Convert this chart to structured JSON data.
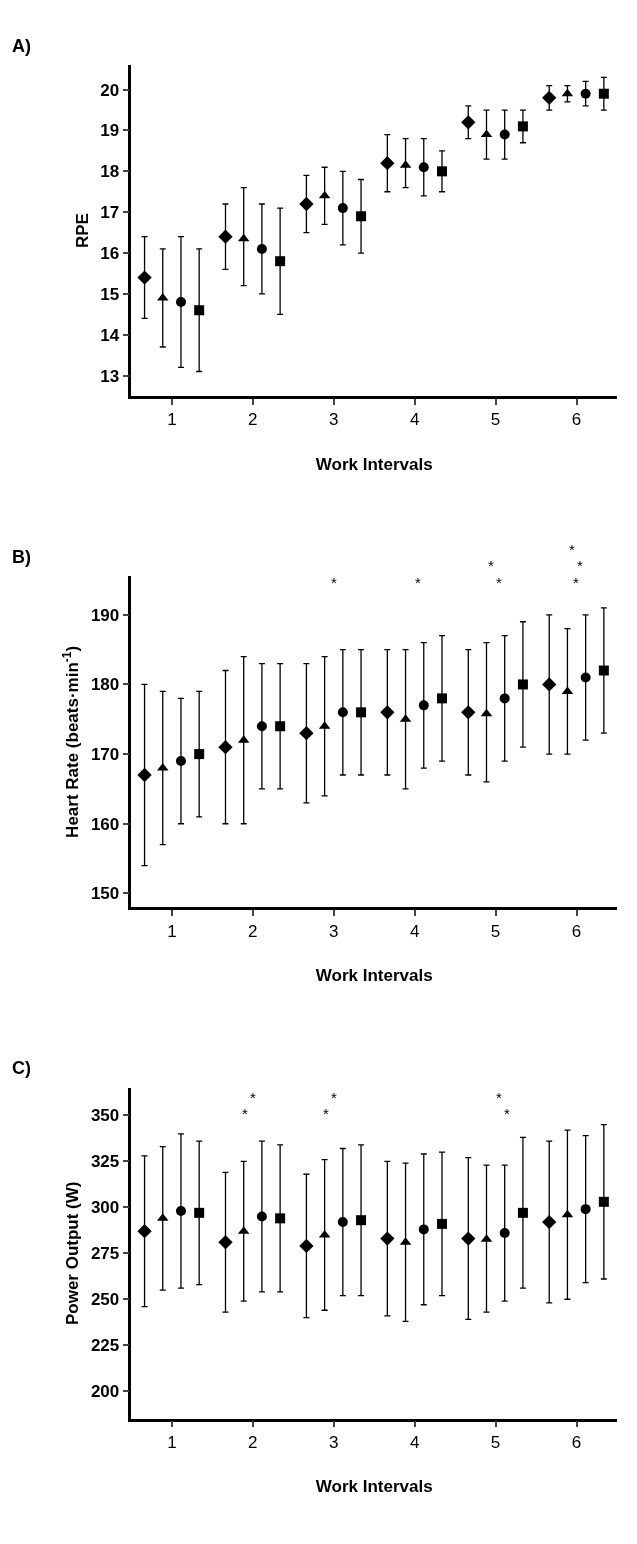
{
  "chart_data": [
    {
      "type": "scatter",
      "title": "A)",
      "xlabel": "Work Intervals",
      "ylabel": "RPE",
      "categories": [
        "1",
        "2",
        "3",
        "4",
        "5",
        "6"
      ],
      "ylim": [
        12.5,
        20.6
      ],
      "yticks": [
        13,
        14,
        15,
        16,
        17,
        18,
        19,
        20
      ],
      "series": [
        {
          "color": "#000000",
          "marker": "diamond",
          "values": [
            15.4,
            16.4,
            17.2,
            18.2,
            19.2,
            19.8
          ],
          "errors": [
            [
              14.4,
              16.4
            ],
            [
              15.6,
              17.2
            ],
            [
              16.5,
              17.9
            ],
            [
              17.5,
              18.9
            ],
            [
              18.8,
              19.6
            ],
            [
              19.5,
              20.1
            ]
          ]
        },
        {
          "color": "#000000",
          "marker": "triangle",
          "values": [
            14.9,
            16.35,
            17.4,
            18.15,
            18.9,
            19.9
          ],
          "errors": [
            [
              13.7,
              16.1
            ],
            [
              15.2,
              17.6
            ],
            [
              16.7,
              18.1
            ],
            [
              17.6,
              18.8
            ],
            [
              18.3,
              19.5
            ],
            [
              19.7,
              20.1
            ]
          ]
        },
        {
          "color": "#000000",
          "marker": "circle",
          "values": [
            14.8,
            16.1,
            17.1,
            18.1,
            18.9,
            19.9
          ],
          "errors": [
            [
              13.2,
              16.4
            ],
            [
              15.0,
              17.2
            ],
            [
              16.2,
              18.0
            ],
            [
              17.4,
              18.8
            ],
            [
              18.3,
              19.5
            ],
            [
              19.6,
              20.2
            ]
          ]
        },
        {
          "color": "#000000",
          "marker": "square",
          "values": [
            14.6,
            15.8,
            16.9,
            18.0,
            19.1,
            19.9
          ],
          "errors": [
            [
              13.1,
              16.1
            ],
            [
              14.5,
              17.1
            ],
            [
              16.0,
              17.8
            ],
            [
              17.5,
              18.5
            ],
            [
              18.7,
              19.5
            ],
            [
              19.5,
              20.3
            ]
          ]
        }
      ]
    },
    {
      "type": "scatter",
      "title": "B)",
      "xlabel": "Work Intervals",
      "ylabel": "Heart Rate (beats·min$^{-1}$)",
      "categories": [
        "1",
        "2",
        "3",
        "4",
        "5",
        "6"
      ],
      "ylim": [
        148,
        195.5
      ],
      "yticks": [
        150,
        160,
        170,
        180,
        190
      ],
      "series": [
        {
          "color": "#000000",
          "marker": "diamond",
          "values": [
            167,
            171,
            173,
            176,
            176,
            180
          ],
          "errors": [
            [
              154,
              180
            ],
            [
              160,
              182
            ],
            [
              163,
              183
            ],
            [
              167,
              185
            ],
            [
              167,
              185
            ],
            [
              170,
              190
            ]
          ]
        },
        {
          "color": "#000000",
          "marker": "triangle",
          "values": [
            168,
            172,
            174,
            175,
            175.8,
            179
          ],
          "errors": [
            [
              157,
              179
            ],
            [
              160,
              184
            ],
            [
              164,
              184
            ],
            [
              165,
              185
            ],
            [
              166,
              186
            ],
            [
              170,
              188
            ]
          ]
        },
        {
          "color": "#000000",
          "marker": "circle",
          "values": [
            169,
            174,
            176,
            177,
            178,
            181
          ],
          "errors": [
            [
              160,
              178
            ],
            [
              165,
              183
            ],
            [
              167,
              185
            ],
            [
              168,
              186
            ],
            [
              169,
              187
            ],
            [
              172,
              190
            ]
          ]
        },
        {
          "color": "#000000",
          "marker": "square",
          "values": [
            170,
            174,
            176,
            178,
            180,
            182
          ],
          "errors": [
            [
              161,
              179
            ],
            [
              165,
              183
            ],
            [
              167,
              185
            ],
            [
              169,
              187
            ],
            [
              171,
              189
            ],
            [
              173,
              191
            ]
          ]
        }
      ],
      "annotations": [
        "*",
        "*",
        "*",
        "*",
        "*",
        "*",
        "*"
      ]
    },
    {
      "type": "scatter",
      "title": "C)",
      "xlabel": "Work Intervals",
      "ylabel": "Power Output (W)",
      "categories": [
        "1",
        "2",
        "3",
        "4",
        "5",
        "6"
      ],
      "ylim": [
        185,
        365
      ],
      "yticks": [
        200,
        225,
        250,
        275,
        300,
        325,
        350
      ],
      "series": [
        {
          "color": "#000000",
          "marker": "diamond",
          "values": [
            287,
            281,
            279,
            283,
            283,
            292
          ],
          "errors": [
            [
              246,
              328
            ],
            [
              243,
              319
            ],
            [
              240,
              318
            ],
            [
              241,
              325
            ],
            [
              239,
              327
            ],
            [
              248,
              336
            ]
          ]
        },
        {
          "color": "#000000",
          "marker": "triangle",
          "values": [
            294,
            287,
            285,
            281,
            282.6,
            296
          ],
          "errors": [
            [
              255,
              333
            ],
            [
              249,
              325
            ],
            [
              244,
              326
            ],
            [
              238,
              324
            ],
            [
              243,
              323
            ],
            [
              250,
              342
            ]
          ]
        },
        {
          "color": "#000000",
          "marker": "circle",
          "values": [
            298,
            295,
            292,
            288,
            286,
            299
          ],
          "errors": [
            [
              256,
              340
            ],
            [
              254,
              336
            ],
            [
              252,
              332
            ],
            [
              247,
              329
            ],
            [
              249,
              323
            ],
            [
              259,
              339
            ]
          ]
        },
        {
          "color": "#000000",
          "marker": "square",
          "values": [
            297,
            294,
            293,
            291,
            297,
            303
          ],
          "errors": [
            [
              258,
              336
            ],
            [
              254,
              334
            ],
            [
              252,
              334
            ],
            [
              252,
              330
            ],
            [
              256,
              338
            ],
            [
              261,
              345
            ]
          ]
        }
      ],
      "annotations": [
        "*",
        "*",
        "*",
        "*",
        "*",
        "*"
      ]
    }
  ]
}
